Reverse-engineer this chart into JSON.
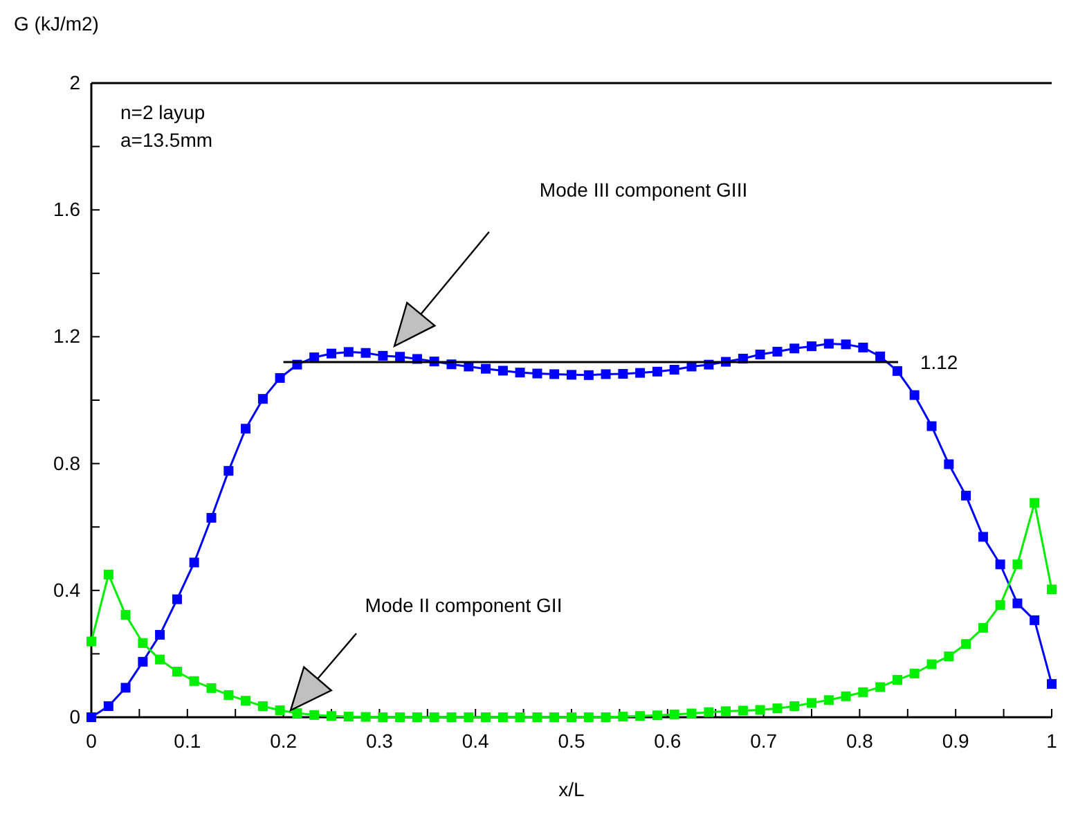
{
  "chart_data": {
    "type": "line",
    "xlabel": "x/L",
    "ylabel": "G (kJ/m2)",
    "xlim": [
      0,
      1
    ],
    "ylim": [
      0,
      2
    ],
    "xticks": [
      0,
      {
        "value": 0.05,
        "label": null
      },
      0.1,
      {
        "value": 0.15,
        "label": null
      },
      0.2,
      {
        "value": 0.25,
        "label": null
      },
      0.3,
      {
        "value": 0.35,
        "label": null
      },
      0.4,
      {
        "value": 0.45,
        "label": null
      },
      0.5,
      {
        "value": 0.55,
        "label": null
      },
      0.6,
      {
        "value": 0.65,
        "label": null
      },
      0.7,
      {
        "value": 0.75,
        "label": null
      },
      0.8,
      {
        "value": 0.85,
        "label": null
      },
      0.9,
      {
        "value": 0.95,
        "label": null
      },
      1
    ],
    "yticks": [
      0,
      {
        "value": 0.2,
        "label": null
      },
      0.4,
      {
        "value": 0.6,
        "label": null
      },
      0.8,
      {
        "value": 1.0,
        "label": null
      },
      1.2,
      {
        "value": 1.4,
        "label": null
      },
      1.6,
      {
        "value": 1.8,
        "label": null
      },
      2
    ],
    "grid": false,
    "marker": "square",
    "line_style": "solid",
    "x": [
      0,
      0.0179,
      0.0357,
      0.0536,
      0.0714,
      0.0893,
      0.1071,
      0.125,
      0.1429,
      0.1607,
      0.1786,
      0.1964,
      0.2143,
      0.2321,
      0.25,
      0.2679,
      0.2857,
      0.3036,
      0.3214,
      0.3393,
      0.3571,
      0.375,
      0.3929,
      0.4107,
      0.4286,
      0.4464,
      0.4643,
      0.4821,
      0.5,
      0.5179,
      0.5357,
      0.5536,
      0.5714,
      0.5893,
      0.6071,
      0.625,
      0.6429,
      0.6607,
      0.6786,
      0.6964,
      0.7143,
      0.7321,
      0.75,
      0.7679,
      0.7857,
      0.8036,
      0.8214,
      0.8393,
      0.8571,
      0.875,
      0.8929,
      0.9107,
      0.9286,
      0.9464,
      0.9643,
      0.9821,
      1
    ],
    "series": [
      {
        "color": "#0000ff",
        "values": [
          0,
          0.035,
          0.093,
          0.175,
          0.26,
          0.372,
          0.488,
          0.629,
          0.777,
          0.91,
          1.004,
          1.07,
          1.112,
          1.135,
          1.147,
          1.152,
          1.149,
          1.14,
          1.137,
          1.13,
          1.122,
          1.113,
          1.106,
          1.099,
          1.093,
          1.087,
          1.084,
          1.082,
          1.08,
          1.079,
          1.082,
          1.083,
          1.086,
          1.09,
          1.096,
          1.106,
          1.112,
          1.121,
          1.131,
          1.144,
          1.153,
          1.163,
          1.17,
          1.178,
          1.176,
          1.166,
          1.138,
          1.092,
          1.016,
          0.918,
          0.798,
          0.699,
          0.569,
          0.482,
          0.359,
          0.306,
          0.105
        ]
      },
      {
        "color": "#00ee00",
        "values": [
          0.239,
          0.45,
          0.323,
          0.234,
          0.182,
          0.144,
          0.114,
          0.092,
          0.07,
          0.052,
          0.035,
          0.022,
          0.013,
          0.007,
          0.004,
          0.002,
          0.001,
          0,
          0,
          0,
          0,
          0,
          0,
          0,
          0,
          0,
          0,
          0,
          0,
          0,
          0,
          0.002,
          0.004,
          0.006,
          0.009,
          0.012,
          0.016,
          0.019,
          0.021,
          0.023,
          0.028,
          0.035,
          0.045,
          0.054,
          0.066,
          0.079,
          0.095,
          0.118,
          0.138,
          0.167,
          0.192,
          0.231,
          0.282,
          0.354,
          0.482,
          0.676,
          0.403
        ]
      },
      {
        "color": "#000000",
        "marker": "none",
        "x": [
          0.2,
          0.84
        ],
        "values": [
          1.12,
          1.12
        ]
      }
    ],
    "annotations": [
      "n=2 layup",
      "a=13.5mm",
      "Mode III component GIII",
      "Mode II component GII",
      {
        "text": "1.12",
        "x": 0.84,
        "y": 1.12
      }
    ]
  }
}
